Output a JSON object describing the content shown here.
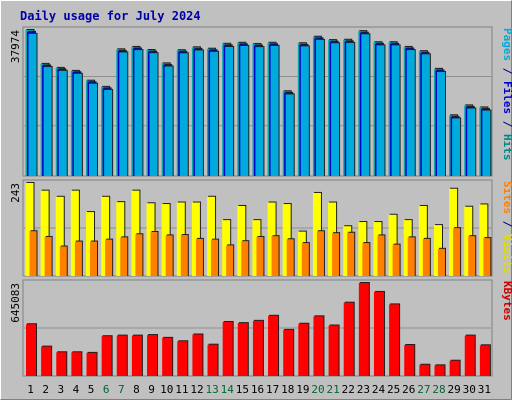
{
  "chart_data": [
    {
      "type": "bar",
      "title": "Daily usage for July 2024",
      "categories": [
        "1",
        "2",
        "3",
        "4",
        "5",
        "6",
        "7",
        "8",
        "9",
        "10",
        "11",
        "12",
        "13",
        "14",
        "15",
        "16",
        "17",
        "18",
        "19",
        "20",
        "21",
        "22",
        "23",
        "24",
        "25",
        "26",
        "27",
        "28",
        "29",
        "30",
        "31"
      ],
      "weekend_days": [
        "6",
        "7",
        "13",
        "14",
        "20",
        "21",
        "27",
        "28"
      ],
      "colors": {
        "weekday": "#000000",
        "weekend": "#006633"
      },
      "ylabel_parts": [
        {
          "text": "Pages",
          "color": "#00aadd"
        },
        {
          "text": " / ",
          "color": "#000080"
        },
        {
          "text": "Files",
          "color": "#0000cc"
        },
        {
          "text": " / ",
          "color": "#000080"
        },
        {
          "text": "Hits",
          "color": "#008888"
        }
      ],
      "ymax_label": "37974",
      "ymax": 37974,
      "series": [
        {
          "name": "Hits",
          "color": "#00aaaa",
          "values": [
            37974,
            29160,
            28120,
            27340,
            24790,
            23180,
            32950,
            33570,
            32770,
            29300,
            32720,
            33470,
            33110,
            34390,
            34650,
            34340,
            34650,
            22040,
            34530,
            36220,
            35350,
            35440,
            37680,
            34800,
            34800,
            33570,
            32470,
            27870,
            15790,
            18370,
            17840
          ]
        },
        {
          "name": "Files",
          "color": "#0000cc",
          "values": [
            37470,
            28750,
            27760,
            26990,
            24400,
            22790,
            32540,
            33160,
            32360,
            28890,
            32310,
            33060,
            32700,
            33980,
            34240,
            33930,
            34240,
            21630,
            34120,
            35810,
            34940,
            35030,
            37270,
            34390,
            34390,
            33160,
            32060,
            27460,
            15380,
            17960,
            17430
          ]
        },
        {
          "name": "Pages",
          "color": "#00aadd",
          "values": [
            36970,
            28340,
            27350,
            26580,
            23990,
            22380,
            32130,
            32750,
            31950,
            28480,
            31900,
            32650,
            32290,
            33570,
            33830,
            33520,
            33830,
            21220,
            33710,
            35400,
            34530,
            34620,
            36860,
            33980,
            33980,
            32750,
            31650,
            27050,
            14970,
            17550,
            17020
          ]
        }
      ],
      "grid": true
    },
    {
      "type": "bar",
      "ylabel_parts": [
        {
          "text": "Sites",
          "color": "#ff8000"
        },
        {
          "text": " / ",
          "color": "#000080"
        },
        {
          "text": "Visits",
          "color": "#dddd00"
        }
      ],
      "ymax_label": "243",
      "ymax": 243,
      "series": [
        {
          "name": "Visits",
          "color": "#ffff00",
          "values": [
            243,
            223,
            207,
            223,
            167,
            207,
            193,
            223,
            190,
            188,
            192,
            192,
            207,
            146,
            183,
            146,
            192,
            188,
            116,
            217,
            192,
            130,
            141,
            141,
            160,
            146,
            183,
            133,
            228,
            181,
            187
          ]
        },
        {
          "name": "Sites",
          "color": "#ff8000",
          "values": [
            117,
            102,
            77,
            90,
            90,
            95,
            101,
            109,
            115,
            106,
            107,
            97,
            95,
            80,
            91,
            102,
            104,
            96,
            86,
            117,
            112,
            113,
            86,
            106,
            82,
            101,
            97,
            71,
            125,
            104,
            99
          ]
        }
      ],
      "grid": true
    },
    {
      "type": "bar",
      "ylabel_parts": [
        {
          "text": "KBytes",
          "color": "#cc0000"
        }
      ],
      "ymax_label": "645083",
      "ymax": 645083,
      "series": [
        {
          "name": "KBytes",
          "color": "#ff0000",
          "values": [
            359200,
            203800,
            164600,
            164600,
            160300,
            276200,
            280100,
            280100,
            284000,
            264500,
            240900,
            288000,
            217200,
            374600,
            366800,
            382500,
            417700,
            319800,
            362400,
            413800,
            350200,
            508600,
            645083,
            583100,
            496700,
            215000,
            78000,
            74000,
            106000,
            280100,
            213000
          ]
        }
      ],
      "grid": true
    }
  ]
}
